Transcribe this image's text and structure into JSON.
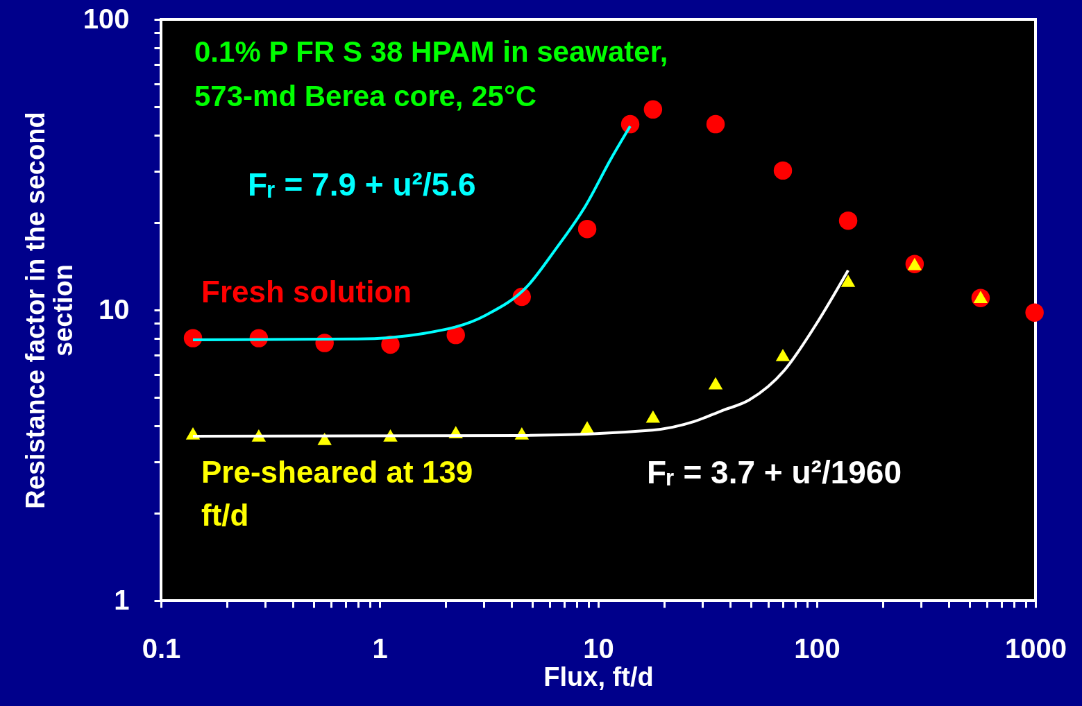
{
  "chart_data": {
    "type": "scatter",
    "xlabel": "Flux, ft/d",
    "ylabel": "Resistance factor in the second section",
    "log": "xy",
    "xlim": [
      0.1,
      1000
    ],
    "ylim": [
      1,
      100
    ],
    "xticks": [
      0.1,
      {
        "value": 0.2,
        "label": null
      },
      {
        "value": 0.3,
        "label": null
      },
      {
        "value": 0.4,
        "label": null
      },
      {
        "value": 0.5,
        "label": null
      },
      {
        "value": 0.6,
        "label": null
      },
      {
        "value": 0.7,
        "label": null
      },
      {
        "value": 0.8,
        "label": null
      },
      {
        "value": 0.9,
        "label": null
      },
      1,
      {
        "value": 2,
        "label": null
      },
      {
        "value": 3,
        "label": null
      },
      {
        "value": 4,
        "label": null
      },
      {
        "value": 5,
        "label": null
      },
      {
        "value": 6,
        "label": null
      },
      {
        "value": 7,
        "label": null
      },
      {
        "value": 8,
        "label": null
      },
      {
        "value": 9,
        "label": null
      },
      10,
      {
        "value": 20,
        "label": null
      },
      {
        "value": 30,
        "label": null
      },
      {
        "value": 40,
        "label": null
      },
      {
        "value": 50,
        "label": null
      },
      {
        "value": 60,
        "label": null
      },
      {
        "value": 70,
        "label": null
      },
      {
        "value": 80,
        "label": null
      },
      {
        "value": 90,
        "label": null
      },
      100,
      {
        "value": 200,
        "label": null
      },
      {
        "value": 300,
        "label": null
      },
      {
        "value": 400,
        "label": null
      },
      {
        "value": 500,
        "label": null
      },
      {
        "value": 600,
        "label": null
      },
      {
        "value": 700,
        "label": null
      },
      {
        "value": 800,
        "label": null
      },
      {
        "value": 900,
        "label": null
      },
      1000
    ],
    "yticks": [
      1,
      {
        "value": 2,
        "label": null
      },
      {
        "value": 3,
        "label": null
      },
      {
        "value": 4,
        "label": null
      },
      {
        "value": 5,
        "label": null
      },
      {
        "value": 6,
        "label": null
      },
      {
        "value": 7,
        "label": null
      },
      {
        "value": 8,
        "label": null
      },
      {
        "value": 9,
        "label": null
      },
      10,
      {
        "value": 20,
        "label": null
      },
      {
        "value": 30,
        "label": null
      },
      {
        "value": 40,
        "label": null
      },
      {
        "value": 50,
        "label": null
      },
      {
        "value": 60,
        "label": null
      },
      {
        "value": 70,
        "label": null
      },
      {
        "value": 80,
        "label": null
      },
      {
        "value": 90,
        "label": null
      },
      100
    ],
    "annotations": [
      "0.1% P FR S 38 HPAM in seawater,",
      "573-md Berea core, 25°C"
    ],
    "series": [
      {
        "name": "Fresh solution",
        "marker": "circle",
        "color": "#ff0000",
        "x": [
          0.14,
          0.28,
          0.56,
          1.12,
          2.23,
          4.47,
          8.9,
          14.0,
          17.8,
          34.4,
          69.9,
          139,
          280,
          561,
          990
        ],
        "values": [
          8.0,
          8.0,
          7.7,
          7.6,
          8.2,
          11.1,
          19.0,
          43.6,
          49,
          43.6,
          30.2,
          20.3,
          14.4,
          11.0,
          9.8
        ]
      },
      {
        "name": "Pre-sheared at 139 ft/d",
        "marker": "triangle",
        "color": "#ffff00",
        "x": [
          0.14,
          0.28,
          0.56,
          1.12,
          2.23,
          4.47,
          8.9,
          17.8,
          34.4,
          69.9,
          139,
          280,
          561
        ],
        "values": [
          3.76,
          3.7,
          3.6,
          3.7,
          3.8,
          3.76,
          3.95,
          4.3,
          5.6,
          7.0,
          12.6,
          14.4,
          11.1
        ]
      },
      {
        "name": "Fᵣ = 7.9 + u²/5.6",
        "type": "line",
        "marker": "none",
        "color": "#00ffff",
        "x": [
          0.14,
          0.79,
          1.58,
          3.06,
          4.75,
          6.35,
          8.8,
          11.4,
          14.0
        ],
        "values": [
          7.9,
          7.95,
          8.3,
          9.6,
          12.1,
          16.1,
          23,
          33,
          42.9
        ]
      },
      {
        "name": "Fᵣ = 3.7 + u²/1960",
        "type": "line",
        "marker": "none",
        "color": "#ffffff",
        "x": [
          0.14,
          4.4,
          17.7,
          27.4,
          36.7,
          49,
          71,
          98,
          139
        ],
        "values": [
          3.68,
          3.7,
          3.86,
          4.13,
          4.5,
          4.9,
          6.2,
          8.8,
          13.7
        ]
      }
    ]
  }
}
